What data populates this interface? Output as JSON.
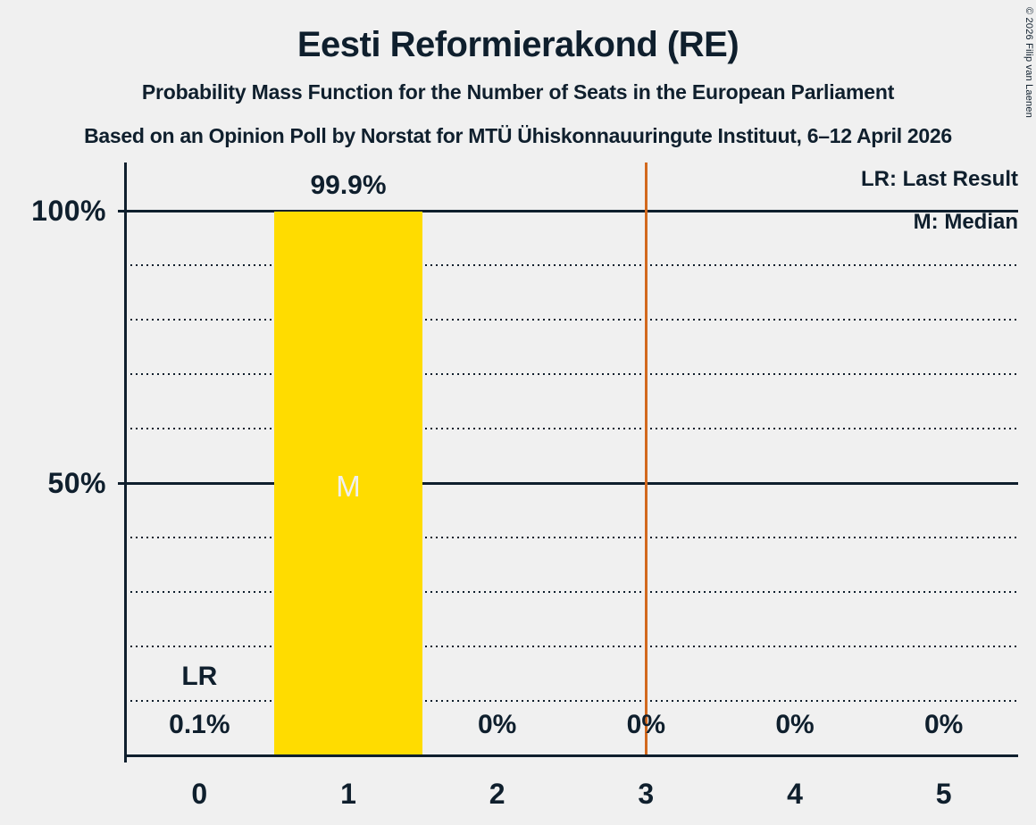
{
  "title": "Eesti Reformierakond (RE)",
  "subtitle1": "Probability Mass Function for the Number of Seats in the European Parliament",
  "subtitle2": "Based on an Opinion Poll by Norstat for MTÜ Ühiskonnauuringute Instituut, 6–12 April 2026",
  "copyright": "© 2026 Filip van Laenen",
  "legend": {
    "lr": "LR: Last Result",
    "m": "M: Median"
  },
  "colors": {
    "background": "#F0F0F0",
    "text": "#0F1F2D",
    "bar": "#FFDC00",
    "median_letter": "#F0F0F0",
    "last_result_line": "#D2691E"
  },
  "chart_data": {
    "type": "bar",
    "categories": [
      "0",
      "1",
      "2",
      "3",
      "4",
      "5"
    ],
    "values": [
      0.1,
      99.9,
      0,
      0,
      0,
      0
    ],
    "value_labels": [
      "0.1%",
      "99.9%",
      "0%",
      "0%",
      "0%",
      "0%"
    ],
    "title": "Eesti Reformierakond (RE)",
    "xlabel": "",
    "ylabel": "",
    "ylim": [
      0,
      100
    ],
    "ytick_labels": [
      {
        "label": "100%",
        "pct": 100
      },
      {
        "label": "50%",
        "pct": 50
      }
    ],
    "grid": "dotted lines every 10%, solid lines at 50% and 100%",
    "legend_position": "top-right",
    "median_category": "1",
    "median_marker": "M",
    "last_result_category": "0",
    "last_result_marker": "LR",
    "majority_line_x": 3.5
  }
}
